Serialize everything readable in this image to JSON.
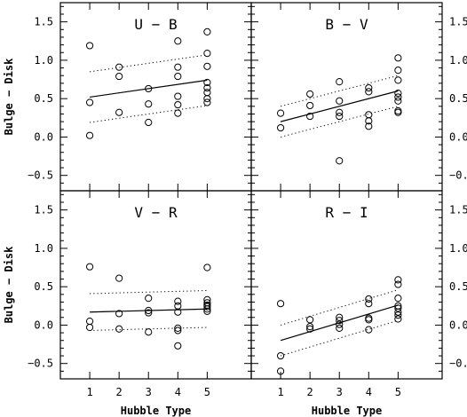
{
  "chart_data": [
    {
      "type": "scatter",
      "title": "U − B",
      "xlabel": "",
      "ylabel": "Bulge − Disk",
      "xlim": [
        0,
        6.5
      ],
      "ylim": [
        -0.7,
        1.75
      ],
      "points": [
        [
          1,
          1.19
        ],
        [
          1,
          0.45
        ],
        [
          1,
          0.02
        ],
        [
          2,
          0.91
        ],
        [
          2,
          0.79
        ],
        [
          2,
          0.32
        ],
        [
          3,
          0.63
        ],
        [
          3,
          0.43
        ],
        [
          3,
          0.19
        ],
        [
          4,
          1.25
        ],
        [
          4,
          0.91
        ],
        [
          4,
          0.79
        ],
        [
          4,
          0.53
        ],
        [
          4,
          0.42
        ],
        [
          4,
          0.31
        ],
        [
          5,
          1.37
        ],
        [
          5,
          1.09
        ],
        [
          5,
          0.92
        ],
        [
          5,
          0.71
        ],
        [
          5,
          0.64
        ],
        [
          5,
          0.58
        ],
        [
          5,
          0.5
        ],
        [
          5,
          0.45
        ]
      ],
      "fit": [
        [
          1,
          0.52
        ],
        [
          5,
          0.74
        ]
      ],
      "upper": [
        [
          1,
          0.85
        ],
        [
          5,
          1.07
        ]
      ],
      "lower": [
        [
          1,
          0.19
        ],
        [
          5,
          0.41
        ]
      ]
    },
    {
      "type": "scatter",
      "title": "B − V",
      "xlabel": "",
      "ylabel": "",
      "xlim": [
        0,
        6.5
      ],
      "ylim": [
        -0.7,
        1.75
      ],
      "points": [
        [
          1,
          0.31
        ],
        [
          1,
          0.12
        ],
        [
          2,
          0.56
        ],
        [
          2,
          0.41
        ],
        [
          2,
          0.27
        ],
        [
          3,
          0.72
        ],
        [
          3,
          0.47
        ],
        [
          3,
          0.32
        ],
        [
          3,
          0.27
        ],
        [
          3,
          -0.31
        ],
        [
          4,
          0.64
        ],
        [
          4,
          0.59
        ],
        [
          4,
          0.29
        ],
        [
          4,
          0.21
        ],
        [
          4,
          0.14
        ],
        [
          5,
          1.03
        ],
        [
          5,
          0.87
        ],
        [
          5,
          0.74
        ],
        [
          5,
          0.57
        ],
        [
          5,
          0.52
        ],
        [
          5,
          0.47
        ],
        [
          5,
          0.34
        ],
        [
          5,
          0.32
        ]
      ],
      "fit": [
        [
          1,
          0.2
        ],
        [
          5,
          0.6
        ]
      ],
      "upper": [
        [
          1,
          0.4
        ],
        [
          5,
          0.8
        ]
      ],
      "lower": [
        [
          1,
          0.0
        ],
        [
          5,
          0.4
        ]
      ]
    },
    {
      "type": "scatter",
      "title": "V − R",
      "xlabel": "Hubble Type",
      "ylabel": "Bulge − Disk",
      "xlim": [
        0,
        6.5
      ],
      "ylim": [
        -0.7,
        1.75
      ],
      "points": [
        [
          1,
          0.76
        ],
        [
          1,
          0.05
        ],
        [
          1,
          -0.03
        ],
        [
          2,
          0.61
        ],
        [
          2,
          0.15
        ],
        [
          2,
          -0.05
        ],
        [
          3,
          0.35
        ],
        [
          3,
          0.19
        ],
        [
          3,
          0.16
        ],
        [
          3,
          -0.09
        ],
        [
          4,
          0.31
        ],
        [
          4,
          0.25
        ],
        [
          4,
          0.17
        ],
        [
          4,
          -0.04
        ],
        [
          4,
          -0.07
        ],
        [
          4,
          -0.27
        ],
        [
          5,
          0.75
        ],
        [
          5,
          0.33
        ],
        [
          5,
          0.29
        ],
        [
          5,
          0.26
        ],
        [
          5,
          0.24
        ],
        [
          5,
          0.21
        ],
        [
          5,
          0.18
        ]
      ],
      "fit": [
        [
          1,
          0.17
        ],
        [
          5,
          0.21
        ]
      ],
      "upper": [
        [
          1,
          0.41
        ],
        [
          5,
          0.45
        ]
      ],
      "lower": [
        [
          1,
          -0.07
        ],
        [
          5,
          -0.03
        ]
      ]
    },
    {
      "type": "scatter",
      "title": "R − I",
      "xlabel": "Hubble Type",
      "ylabel": "",
      "xlim": [
        0,
        6.5
      ],
      "ylim": [
        -0.7,
        1.75
      ],
      "points": [
        [
          1,
          0.28
        ],
        [
          1,
          -0.4
        ],
        [
          1,
          -0.6
        ],
        [
          2,
          0.07
        ],
        [
          2,
          -0.02
        ],
        [
          2,
          -0.05
        ],
        [
          3,
          0.1
        ],
        [
          3,
          0.06
        ],
        [
          3,
          0.01
        ],
        [
          3,
          -0.04
        ],
        [
          4,
          0.34
        ],
        [
          4,
          0.28
        ],
        [
          4,
          0.09
        ],
        [
          4,
          0.07
        ],
        [
          4,
          -0.06
        ],
        [
          5,
          0.59
        ],
        [
          5,
          0.53
        ],
        [
          5,
          0.35
        ],
        [
          5,
          0.25
        ],
        [
          5,
          0.22
        ],
        [
          5,
          0.17
        ],
        [
          5,
          0.13
        ],
        [
          5,
          0.08
        ]
      ],
      "fit": [
        [
          1,
          -0.2
        ],
        [
          5,
          0.26
        ]
      ],
      "upper": [
        [
          1,
          0.0
        ],
        [
          5,
          0.46
        ]
      ],
      "lower": [
        [
          1,
          -0.4
        ],
        [
          5,
          0.06
        ]
      ]
    }
  ],
  "x_ticks": [
    1,
    2,
    3,
    4,
    5
  ],
  "y_ticks": [
    "−0.5",
    "0.0",
    "0.5",
    "1.0",
    "1.5"
  ],
  "y_tick_values": [
    -0.5,
    0.0,
    0.5,
    1.0,
    1.5
  ],
  "colors": {
    "ink": "#000000",
    "background": "#ffffff"
  }
}
